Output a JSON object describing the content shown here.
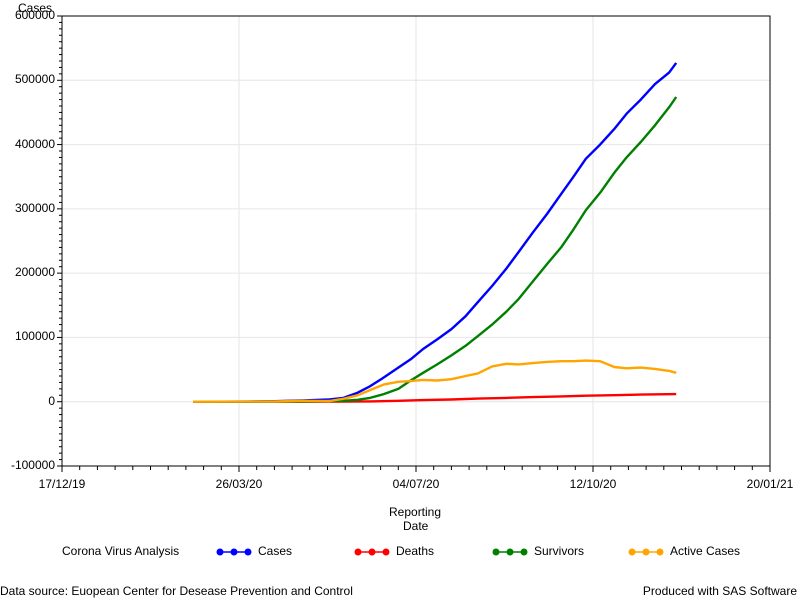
{
  "chart_data": {
    "type": "line",
    "title": "",
    "ylabel": "Cases",
    "xlabel_line1": "Reporting",
    "xlabel_line2": "Date",
    "ylim": [
      -100000,
      600000
    ],
    "xlim": [
      "2019-12-17",
      "2021-01-20"
    ],
    "y_ticks": [
      -100000,
      0,
      100000,
      200000,
      300000,
      400000,
      500000,
      600000
    ],
    "y_tick_labels": [
      "-100000",
      "0",
      "100000",
      "200000",
      "300000",
      "400000",
      "500000",
      "600000"
    ],
    "x_ticks": [
      "2019-12-17",
      "2020-03-26",
      "2020-07-04",
      "2020-10-12",
      "2021-01-20"
    ],
    "x_tick_labels": [
      "17/12/19",
      "26/03/20",
      "04/07/20",
      "12/10/20",
      "20/01/21"
    ],
    "grid": true,
    "legend_position": "bottom",
    "legend_title": "Corona Virus Analysis",
    "series": [
      {
        "name": "Cases",
        "color": "#0000ff",
        "x": [
          "2020-02-29",
          "2020-03-15",
          "2020-03-31",
          "2020-04-15",
          "2020-05-01",
          "2020-05-16",
          "2020-05-24",
          "2020-06-01",
          "2020-06-08",
          "2020-06-16",
          "2020-06-24",
          "2020-07-01",
          "2020-07-08",
          "2020-07-16",
          "2020-07-24",
          "2020-08-01",
          "2020-08-08",
          "2020-08-16",
          "2020-08-24",
          "2020-08-31",
          "2020-09-08",
          "2020-09-16",
          "2020-09-24",
          "2020-10-01",
          "2020-10-08",
          "2020-10-16",
          "2020-10-24",
          "2020-10-31",
          "2020-11-08",
          "2020-11-16",
          "2020-11-24",
          "2020-11-28"
        ],
        "values": [
          0,
          0,
          200,
          800,
          2000,
          3500,
          6000,
          14000,
          24000,
          38000,
          53000,
          66000,
          82000,
          97000,
          113000,
          133000,
          155000,
          180000,
          207000,
          233000,
          263000,
          292000,
          323000,
          350000,
          378000,
          400000,
          424000,
          448000,
          470000,
          494000,
          512000,
          527000
        ]
      },
      {
        "name": "Deaths",
        "color": "#ff0000",
        "x": [
          "2020-02-29",
          "2020-03-31",
          "2020-05-01",
          "2020-05-24",
          "2020-06-08",
          "2020-06-24",
          "2020-07-08",
          "2020-07-24",
          "2020-08-08",
          "2020-08-24",
          "2020-09-08",
          "2020-09-24",
          "2020-10-08",
          "2020-10-24",
          "2020-11-08",
          "2020-11-28"
        ],
        "values": [
          0,
          10,
          80,
          150,
          500,
          1500,
          2500,
          3500,
          4800,
          6000,
          7200,
          8300,
          9300,
          10200,
          11000,
          11800
        ]
      },
      {
        "name": "Survivors",
        "color": "#008000",
        "x": [
          "2020-02-29",
          "2020-03-31",
          "2020-05-01",
          "2020-05-24",
          "2020-06-01",
          "2020-06-08",
          "2020-06-16",
          "2020-06-24",
          "2020-07-01",
          "2020-07-08",
          "2020-07-16",
          "2020-07-24",
          "2020-08-01",
          "2020-08-08",
          "2020-08-16",
          "2020-08-24",
          "2020-08-31",
          "2020-09-08",
          "2020-09-16",
          "2020-09-24",
          "2020-10-01",
          "2020-10-08",
          "2020-10-16",
          "2020-10-24",
          "2020-10-31",
          "2020-11-08",
          "2020-11-16",
          "2020-11-24",
          "2020-11-28"
        ],
        "values": [
          0,
          0,
          500,
          1500,
          3000,
          6000,
          12000,
          20000,
          33000,
          45000,
          58000,
          72000,
          87000,
          102000,
          120000,
          140000,
          160000,
          187000,
          214000,
          240000,
          268000,
          298000,
          325000,
          356000,
          380000,
          404000,
          430000,
          458000,
          474000
        ]
      },
      {
        "name": "Active Cases",
        "color": "#ffa500",
        "x": [
          "2020-02-29",
          "2020-03-31",
          "2020-04-15",
          "2020-05-01",
          "2020-05-16",
          "2020-05-24",
          "2020-06-01",
          "2020-06-08",
          "2020-06-16",
          "2020-06-24",
          "2020-07-01",
          "2020-07-08",
          "2020-07-16",
          "2020-07-24",
          "2020-08-01",
          "2020-08-08",
          "2020-08-16",
          "2020-08-24",
          "2020-08-31",
          "2020-09-08",
          "2020-09-16",
          "2020-09-24",
          "2020-10-01",
          "2020-10-08",
          "2020-10-16",
          "2020-10-24",
          "2020-10-31",
          "2020-11-08",
          "2020-11-16",
          "2020-11-24",
          "2020-11-28"
        ],
        "values": [
          0,
          200,
          300,
          1500,
          1000,
          4500,
          10000,
          18000,
          27000,
          31000,
          32000,
          34000,
          33000,
          35000,
          40000,
          44000,
          55000,
          59000,
          58000,
          60000,
          62000,
          63000,
          63000,
          64000,
          63000,
          54000,
          52000,
          53000,
          51000,
          48000,
          45000
        ]
      }
    ]
  },
  "footer": {
    "source": "Data source: Euopean Center for Desease Prevention and Control",
    "produced": "Produced with SAS Software"
  }
}
